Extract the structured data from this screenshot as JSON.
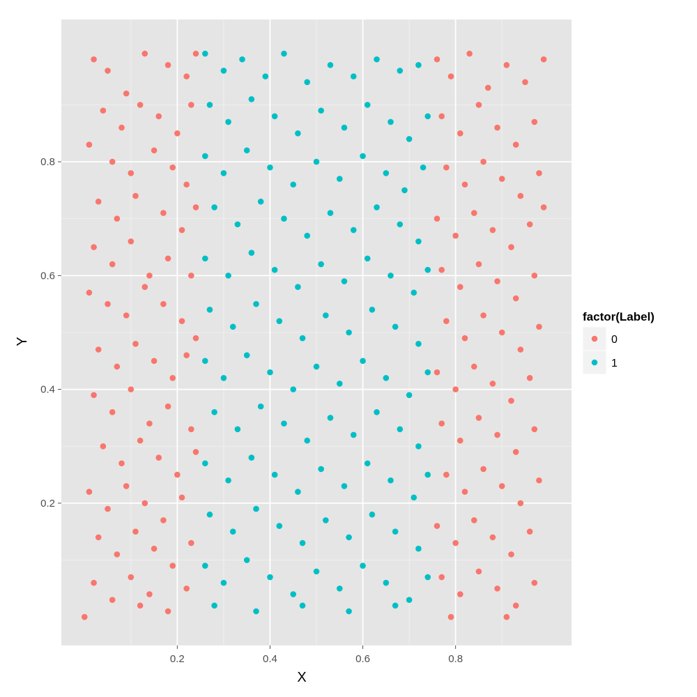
{
  "chart_data": {
    "type": "scatter",
    "xlabel": "X",
    "ylabel": "Y",
    "xlim": [
      -0.05,
      1.05
    ],
    "ylim": [
      -0.05,
      1.05
    ],
    "x_ticks": [
      0.2,
      0.4,
      0.6,
      0.8
    ],
    "x_tick_labels": [
      "0.2",
      "0.4",
      "0.6",
      "0.8"
    ],
    "y_ticks": [
      0.2,
      0.4,
      0.6,
      0.8
    ],
    "y_tick_labels": [
      "0.2",
      "0.4",
      "0.6",
      "0.8"
    ],
    "grid": true,
    "legend": {
      "title": "factor(Label)",
      "position": "right",
      "entries": [
        {
          "label": "0",
          "color": "#F8766D"
        },
        {
          "label": "1",
          "color": "#00BFC4"
        }
      ]
    },
    "series": [
      {
        "label": "0",
        "color": "#F8766D",
        "points": [
          [
            0.02,
            0.98
          ],
          [
            0.05,
            0.96
          ],
          [
            0.09,
            0.92
          ],
          [
            0.13,
            0.99
          ],
          [
            0.18,
            0.97
          ],
          [
            0.22,
            0.95
          ],
          [
            0.24,
            0.99
          ],
          [
            0.04,
            0.89
          ],
          [
            0.08,
            0.86
          ],
          [
            0.12,
            0.9
          ],
          [
            0.16,
            0.88
          ],
          [
            0.2,
            0.85
          ],
          [
            0.23,
            0.9
          ],
          [
            0.01,
            0.83
          ],
          [
            0.06,
            0.8
          ],
          [
            0.1,
            0.78
          ],
          [
            0.15,
            0.82
          ],
          [
            0.19,
            0.79
          ],
          [
            0.22,
            0.76
          ],
          [
            0.03,
            0.73
          ],
          [
            0.07,
            0.7
          ],
          [
            0.11,
            0.74
          ],
          [
            0.17,
            0.71
          ],
          [
            0.21,
            0.68
          ],
          [
            0.24,
            0.72
          ],
          [
            0.02,
            0.65
          ],
          [
            0.06,
            0.62
          ],
          [
            0.1,
            0.66
          ],
          [
            0.14,
            0.6
          ],
          [
            0.18,
            0.63
          ],
          [
            0.23,
            0.6
          ],
          [
            0.01,
            0.57
          ],
          [
            0.05,
            0.55
          ],
          [
            0.09,
            0.53
          ],
          [
            0.13,
            0.58
          ],
          [
            0.17,
            0.55
          ],
          [
            0.21,
            0.52
          ],
          [
            0.24,
            0.49
          ],
          [
            0.03,
            0.47
          ],
          [
            0.07,
            0.44
          ],
          [
            0.11,
            0.48
          ],
          [
            0.15,
            0.45
          ],
          [
            0.19,
            0.42
          ],
          [
            0.22,
            0.46
          ],
          [
            0.02,
            0.39
          ],
          [
            0.06,
            0.36
          ],
          [
            0.1,
            0.4
          ],
          [
            0.14,
            0.34
          ],
          [
            0.18,
            0.37
          ],
          [
            0.23,
            0.33
          ],
          [
            0.04,
            0.3
          ],
          [
            0.08,
            0.27
          ],
          [
            0.12,
            0.31
          ],
          [
            0.16,
            0.28
          ],
          [
            0.2,
            0.25
          ],
          [
            0.24,
            0.29
          ],
          [
            0.01,
            0.22
          ],
          [
            0.05,
            0.19
          ],
          [
            0.09,
            0.23
          ],
          [
            0.13,
            0.2
          ],
          [
            0.17,
            0.17
          ],
          [
            0.21,
            0.21
          ],
          [
            0.03,
            0.14
          ],
          [
            0.07,
            0.11
          ],
          [
            0.11,
            0.15
          ],
          [
            0.15,
            0.12
          ],
          [
            0.19,
            0.09
          ],
          [
            0.23,
            0.13
          ],
          [
            0.02,
            0.06
          ],
          [
            0.06,
            0.03
          ],
          [
            0.1,
            0.07
          ],
          [
            0.14,
            0.04
          ],
          [
            0.18,
            0.01
          ],
          [
            0.22,
            0.05
          ],
          [
            0.0,
            0.0
          ],
          [
            0.12,
            0.02
          ],
          [
            0.76,
            0.98
          ],
          [
            0.79,
            0.95
          ],
          [
            0.83,
            0.99
          ],
          [
            0.87,
            0.93
          ],
          [
            0.91,
            0.97
          ],
          [
            0.95,
            0.94
          ],
          [
            0.99,
            0.98
          ],
          [
            0.77,
            0.88
          ],
          [
            0.81,
            0.85
          ],
          [
            0.85,
            0.9
          ],
          [
            0.89,
            0.86
          ],
          [
            0.93,
            0.83
          ],
          [
            0.97,
            0.87
          ],
          [
            0.78,
            0.79
          ],
          [
            0.82,
            0.76
          ],
          [
            0.86,
            0.8
          ],
          [
            0.9,
            0.77
          ],
          [
            0.94,
            0.74
          ],
          [
            0.98,
            0.78
          ],
          [
            0.76,
            0.7
          ],
          [
            0.8,
            0.67
          ],
          [
            0.84,
            0.71
          ],
          [
            0.88,
            0.68
          ],
          [
            0.92,
            0.65
          ],
          [
            0.96,
            0.69
          ],
          [
            0.99,
            0.72
          ],
          [
            0.77,
            0.61
          ],
          [
            0.81,
            0.58
          ],
          [
            0.85,
            0.62
          ],
          [
            0.89,
            0.59
          ],
          [
            0.93,
            0.56
          ],
          [
            0.97,
            0.6
          ],
          [
            0.78,
            0.52
          ],
          [
            0.82,
            0.49
          ],
          [
            0.86,
            0.53
          ],
          [
            0.9,
            0.5
          ],
          [
            0.94,
            0.47
          ],
          [
            0.98,
            0.51
          ],
          [
            0.76,
            0.43
          ],
          [
            0.8,
            0.4
          ],
          [
            0.84,
            0.44
          ],
          [
            0.88,
            0.41
          ],
          [
            0.92,
            0.38
          ],
          [
            0.96,
            0.42
          ],
          [
            0.77,
            0.34
          ],
          [
            0.81,
            0.31
          ],
          [
            0.85,
            0.35
          ],
          [
            0.89,
            0.32
          ],
          [
            0.93,
            0.29
          ],
          [
            0.97,
            0.33
          ],
          [
            0.78,
            0.25
          ],
          [
            0.82,
            0.22
          ],
          [
            0.86,
            0.26
          ],
          [
            0.9,
            0.23
          ],
          [
            0.94,
            0.2
          ],
          [
            0.98,
            0.24
          ],
          [
            0.76,
            0.16
          ],
          [
            0.8,
            0.13
          ],
          [
            0.84,
            0.17
          ],
          [
            0.88,
            0.14
          ],
          [
            0.92,
            0.11
          ],
          [
            0.96,
            0.15
          ],
          [
            0.77,
            0.07
          ],
          [
            0.81,
            0.04
          ],
          [
            0.85,
            0.08
          ],
          [
            0.89,
            0.05
          ],
          [
            0.93,
            0.02
          ],
          [
            0.97,
            0.06
          ],
          [
            0.79,
            0.0
          ],
          [
            0.91,
            0.0
          ]
        ]
      },
      {
        "label": "1",
        "color": "#00BFC4",
        "points": [
          [
            0.26,
            0.99
          ],
          [
            0.3,
            0.96
          ],
          [
            0.34,
            0.98
          ],
          [
            0.39,
            0.95
          ],
          [
            0.43,
            0.99
          ],
          [
            0.48,
            0.94
          ],
          [
            0.53,
            0.97
          ],
          [
            0.58,
            0.95
          ],
          [
            0.63,
            0.98
          ],
          [
            0.68,
            0.96
          ],
          [
            0.72,
            0.97
          ],
          [
            0.27,
            0.9
          ],
          [
            0.31,
            0.87
          ],
          [
            0.36,
            0.91
          ],
          [
            0.41,
            0.88
          ],
          [
            0.46,
            0.85
          ],
          [
            0.51,
            0.89
          ],
          [
            0.56,
            0.86
          ],
          [
            0.61,
            0.9
          ],
          [
            0.66,
            0.87
          ],
          [
            0.7,
            0.84
          ],
          [
            0.74,
            0.88
          ],
          [
            0.26,
            0.81
          ],
          [
            0.3,
            0.78
          ],
          [
            0.35,
            0.82
          ],
          [
            0.4,
            0.79
          ],
          [
            0.45,
            0.76
          ],
          [
            0.5,
            0.8
          ],
          [
            0.55,
            0.77
          ],
          [
            0.6,
            0.81
          ],
          [
            0.65,
            0.78
          ],
          [
            0.69,
            0.75
          ],
          [
            0.73,
            0.79
          ],
          [
            0.28,
            0.72
          ],
          [
            0.33,
            0.69
          ],
          [
            0.38,
            0.73
          ],
          [
            0.43,
            0.7
          ],
          [
            0.48,
            0.67
          ],
          [
            0.53,
            0.71
          ],
          [
            0.58,
            0.68
          ],
          [
            0.63,
            0.72
          ],
          [
            0.68,
            0.69
          ],
          [
            0.72,
            0.66
          ],
          [
            0.26,
            0.63
          ],
          [
            0.31,
            0.6
          ],
          [
            0.36,
            0.64
          ],
          [
            0.41,
            0.61
          ],
          [
            0.46,
            0.58
          ],
          [
            0.51,
            0.62
          ],
          [
            0.56,
            0.59
          ],
          [
            0.61,
            0.63
          ],
          [
            0.66,
            0.6
          ],
          [
            0.71,
            0.57
          ],
          [
            0.74,
            0.61
          ],
          [
            0.27,
            0.54
          ],
          [
            0.32,
            0.51
          ],
          [
            0.37,
            0.55
          ],
          [
            0.42,
            0.52
          ],
          [
            0.47,
            0.49
          ],
          [
            0.52,
            0.53
          ],
          [
            0.57,
            0.5
          ],
          [
            0.62,
            0.54
          ],
          [
            0.67,
            0.51
          ],
          [
            0.72,
            0.48
          ],
          [
            0.26,
            0.45
          ],
          [
            0.3,
            0.42
          ],
          [
            0.35,
            0.46
          ],
          [
            0.4,
            0.43
          ],
          [
            0.45,
            0.4
          ],
          [
            0.5,
            0.44
          ],
          [
            0.55,
            0.41
          ],
          [
            0.6,
            0.45
          ],
          [
            0.65,
            0.42
          ],
          [
            0.7,
            0.39
          ],
          [
            0.74,
            0.43
          ],
          [
            0.28,
            0.36
          ],
          [
            0.33,
            0.33
          ],
          [
            0.38,
            0.37
          ],
          [
            0.43,
            0.34
          ],
          [
            0.48,
            0.31
          ],
          [
            0.53,
            0.35
          ],
          [
            0.58,
            0.32
          ],
          [
            0.63,
            0.36
          ],
          [
            0.68,
            0.33
          ],
          [
            0.72,
            0.3
          ],
          [
            0.26,
            0.27
          ],
          [
            0.31,
            0.24
          ],
          [
            0.36,
            0.28
          ],
          [
            0.41,
            0.25
          ],
          [
            0.46,
            0.22
          ],
          [
            0.51,
            0.26
          ],
          [
            0.56,
            0.23
          ],
          [
            0.61,
            0.27
          ],
          [
            0.66,
            0.24
          ],
          [
            0.71,
            0.21
          ],
          [
            0.74,
            0.25
          ],
          [
            0.27,
            0.18
          ],
          [
            0.32,
            0.15
          ],
          [
            0.37,
            0.19
          ],
          [
            0.42,
            0.16
          ],
          [
            0.47,
            0.13
          ],
          [
            0.52,
            0.17
          ],
          [
            0.57,
            0.14
          ],
          [
            0.62,
            0.18
          ],
          [
            0.67,
            0.15
          ],
          [
            0.72,
            0.12
          ],
          [
            0.26,
            0.09
          ],
          [
            0.3,
            0.06
          ],
          [
            0.35,
            0.1
          ],
          [
            0.4,
            0.07
          ],
          [
            0.45,
            0.04
          ],
          [
            0.5,
            0.08
          ],
          [
            0.55,
            0.05
          ],
          [
            0.6,
            0.09
          ],
          [
            0.65,
            0.06
          ],
          [
            0.7,
            0.03
          ],
          [
            0.74,
            0.07
          ],
          [
            0.28,
            0.02
          ],
          [
            0.37,
            0.01
          ],
          [
            0.47,
            0.02
          ],
          [
            0.57,
            0.01
          ],
          [
            0.67,
            0.02
          ]
        ]
      }
    ]
  }
}
